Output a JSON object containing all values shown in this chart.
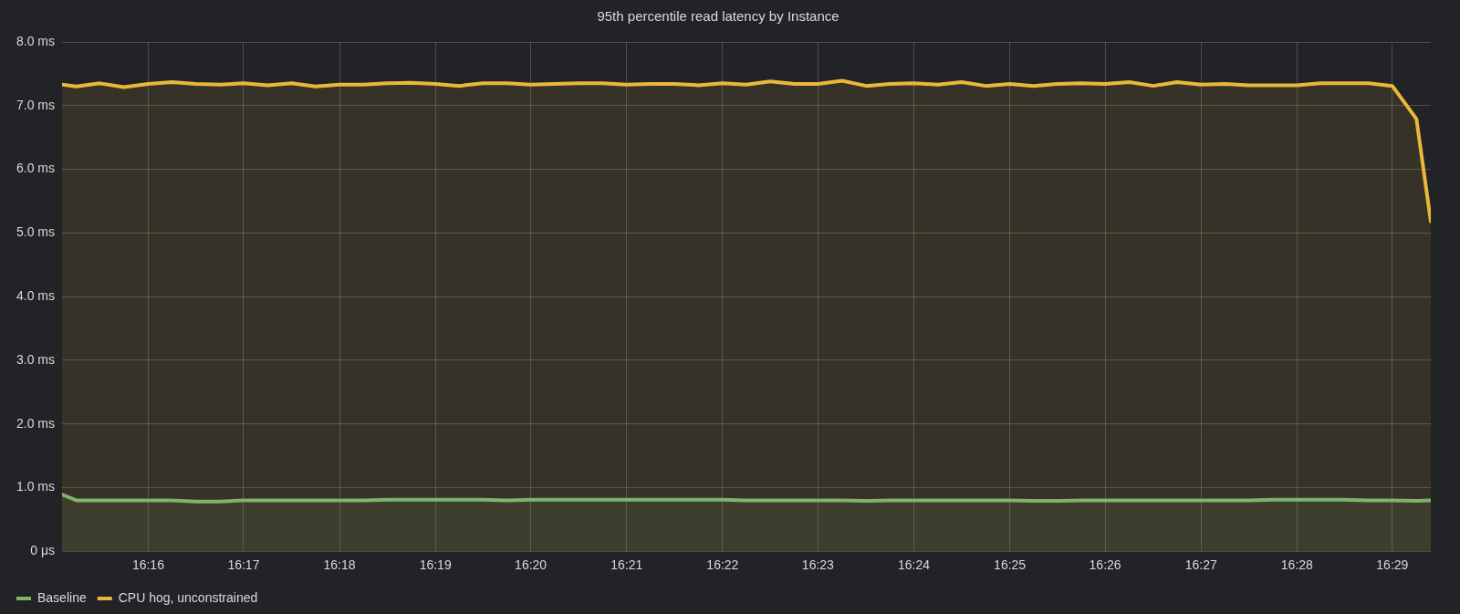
{
  "chart_data": {
    "type": "area",
    "title": "95th percentile read latency by Instance",
    "x": [
      16.2517,
      16.2542,
      16.2583,
      16.2625,
      16.2667,
      16.2708,
      16.275,
      16.2792,
      16.2833,
      16.2875,
      16.2917,
      16.2958,
      16.3,
      16.3042,
      16.3083,
      16.3125,
      16.3167,
      16.3208,
      16.325,
      16.3292,
      16.3333,
      16.3375,
      16.3417,
      16.3458,
      16.35,
      16.3542,
      16.3583,
      16.3625,
      16.3667,
      16.3708,
      16.375,
      16.3792,
      16.3833,
      16.3875,
      16.3917,
      16.3958,
      16.4,
      16.4042,
      16.4083,
      16.4125,
      16.4167,
      16.4208,
      16.425,
      16.4292,
      16.4333,
      16.4375,
      16.4417,
      16.4458,
      16.45,
      16.4542,
      16.4583,
      16.4625,
      16.4667,
      16.4708,
      16.475,
      16.4792,
      16.4833,
      16.4875,
      16.49
    ],
    "series": [
      {
        "name": "Baseline",
        "color": "#7eb26d",
        "values": [
          0.89,
          0.8,
          0.8,
          0.8,
          0.8,
          0.8,
          0.78,
          0.78,
          0.8,
          0.8,
          0.8,
          0.8,
          0.8,
          0.8,
          0.81,
          0.81,
          0.81,
          0.81,
          0.81,
          0.8,
          0.81,
          0.81,
          0.81,
          0.81,
          0.81,
          0.81,
          0.81,
          0.81,
          0.81,
          0.8,
          0.8,
          0.8,
          0.8,
          0.8,
          0.79,
          0.8,
          0.8,
          0.8,
          0.8,
          0.8,
          0.8,
          0.79,
          0.79,
          0.8,
          0.8,
          0.8,
          0.8,
          0.8,
          0.8,
          0.8,
          0.8,
          0.81,
          0.81,
          0.81,
          0.81,
          0.8,
          0.8,
          0.79,
          0.8
        ]
      },
      {
        "name": "CPU hog, unconstrained",
        "color": "#eab839",
        "values": [
          7.33,
          7.3,
          7.35,
          7.29,
          7.34,
          7.37,
          7.34,
          7.33,
          7.35,
          7.32,
          7.35,
          7.3,
          7.33,
          7.33,
          7.35,
          7.36,
          7.34,
          7.31,
          7.35,
          7.35,
          7.33,
          7.34,
          7.35,
          7.35,
          7.33,
          7.34,
          7.34,
          7.32,
          7.35,
          7.33,
          7.38,
          7.34,
          7.34,
          7.39,
          7.31,
          7.34,
          7.35,
          7.33,
          7.37,
          7.31,
          7.34,
          7.31,
          7.34,
          7.35,
          7.34,
          7.37,
          7.31,
          7.37,
          7.33,
          7.34,
          7.32,
          7.32,
          7.32,
          7.35,
          7.35,
          7.35,
          7.31,
          6.79,
          5.18
        ]
      }
    ],
    "xlim": [
      16.2517,
      16.49
    ],
    "xticks": [
      {
        "value": 16.2667,
        "label": "16:16"
      },
      {
        "value": 16.2833,
        "label": "16:17"
      },
      {
        "value": 16.3,
        "label": "16:18"
      },
      {
        "value": 16.3167,
        "label": "16:19"
      },
      {
        "value": 16.3333,
        "label": "16:20"
      },
      {
        "value": 16.35,
        "label": "16:21"
      },
      {
        "value": 16.3667,
        "label": "16:22"
      },
      {
        "value": 16.3833,
        "label": "16:23"
      },
      {
        "value": 16.4,
        "label": "16:24"
      },
      {
        "value": 16.4167,
        "label": "16:25"
      },
      {
        "value": 16.4333,
        "label": "16:26"
      },
      {
        "value": 16.45,
        "label": "16:27"
      },
      {
        "value": 16.4667,
        "label": "16:28"
      },
      {
        "value": 16.4833,
        "label": "16:29"
      }
    ],
    "ylim": [
      0,
      8
    ],
    "yticks": [
      {
        "value": 0,
        "label": "0 μs"
      },
      {
        "value": 1,
        "label": "1.0 ms"
      },
      {
        "value": 2,
        "label": "2.0 ms"
      },
      {
        "value": 3,
        "label": "3.0 ms"
      },
      {
        "value": 4,
        "label": "4.0 ms"
      },
      {
        "value": 5,
        "label": "5.0 ms"
      },
      {
        "value": 6,
        "label": "6.0 ms"
      },
      {
        "value": 7,
        "label": "7.0 ms"
      },
      {
        "value": 8,
        "label": "8.0 ms"
      }
    ],
    "grid": true,
    "legend": "bottom left",
    "marker": "none",
    "line_style": "solid"
  }
}
